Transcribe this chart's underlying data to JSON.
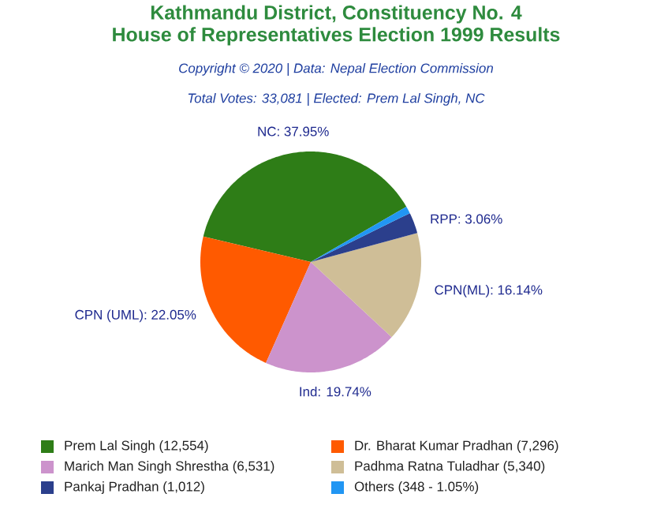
{
  "chart_data": {
    "type": "pie",
    "title": "Kathmandu District, Constituency No. 4\nHouse of Representatives Election 1999 Results",
    "subtitle": "Copyright © 2020 | Data: Nepal Election Commission",
    "annotations": [
      "Total Votes: 33,081 | Elected: Prem Lal Singh, NC"
    ],
    "categories": [
      "Prem Lal Singh (12,554)",
      "Dr. Bharat Kumar Pradhan (7,296)",
      "Marich Man Singh Shrestha (6,531)",
      "Padhma Ratna Tuladhar (5,340)",
      "Pankaj Pradhan (1,012)",
      "Others (348 - 1.05%)"
    ],
    "values": [
      37.95,
      22.05,
      19.74,
      16.14,
      3.06,
      1.05
    ],
    "colors": [
      "#2e7d17",
      "#ff5a00",
      "#cc93cc",
      "#cfbe97",
      "#2b3f8c",
      "#2196f3"
    ],
    "value_labels": [
      "NC: 37.95%",
      "CPN (UML): 22.05%",
      "Ind: 19.74%",
      "CPN(ML): 16.14%",
      "RPP: 3.06%",
      null
    ],
    "legend": "bottom"
  }
}
